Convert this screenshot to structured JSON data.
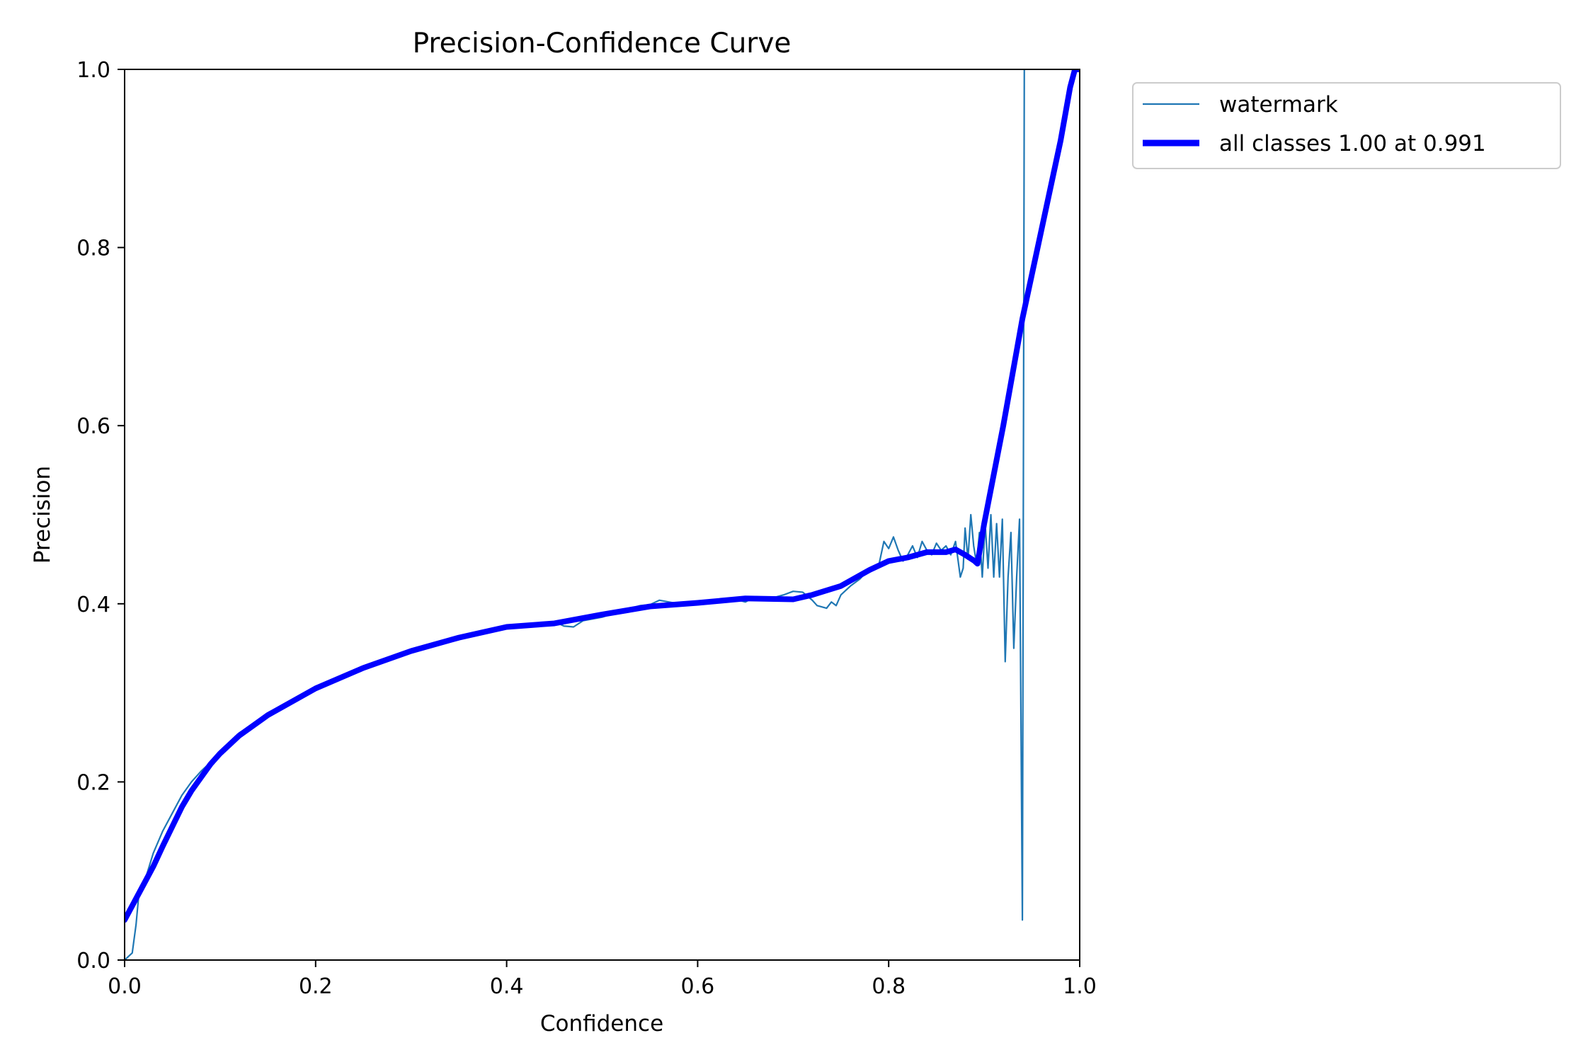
{
  "chart_data": {
    "type": "line",
    "title": "Precision-Confidence Curve",
    "xlabel": "Confidence",
    "ylabel": "Precision",
    "xlim": [
      0.0,
      1.0
    ],
    "ylim": [
      0.0,
      1.0
    ],
    "xticks": [
      0.0,
      0.2,
      0.4,
      0.6,
      0.8,
      1.0
    ],
    "yticks": [
      0.0,
      0.2,
      0.4,
      0.6,
      0.8,
      1.0
    ],
    "xtick_labels": [
      "0.0",
      "0.2",
      "0.4",
      "0.6",
      "0.8",
      "1.0"
    ],
    "ytick_labels": [
      "0.0",
      "0.2",
      "0.4",
      "0.6",
      "0.8",
      "1.0"
    ],
    "grid": false,
    "legend": {
      "placement": "outside-top-right",
      "entries": [
        {
          "label": "watermark",
          "color": "#1f77b4",
          "style": "thin"
        },
        {
          "label": "all classes 1.00 at 0.991",
          "color": "#0000ff",
          "style": "thick"
        }
      ]
    },
    "series": [
      {
        "name": "watermark",
        "color": "#1f77b4",
        "points": [
          [
            0.0,
            0.0
          ],
          [
            0.005,
            0.005
          ],
          [
            0.008,
            0.008
          ],
          [
            0.012,
            0.04
          ],
          [
            0.015,
            0.075
          ],
          [
            0.02,
            0.085
          ],
          [
            0.03,
            0.12
          ],
          [
            0.04,
            0.145
          ],
          [
            0.05,
            0.165
          ],
          [
            0.06,
            0.185
          ],
          [
            0.07,
            0.2
          ],
          [
            0.08,
            0.212
          ],
          [
            0.09,
            0.222
          ],
          [
            0.1,
            0.235
          ],
          [
            0.12,
            0.255
          ],
          [
            0.15,
            0.275
          ],
          [
            0.2,
            0.305
          ],
          [
            0.25,
            0.327
          ],
          [
            0.3,
            0.347
          ],
          [
            0.35,
            0.362
          ],
          [
            0.4,
            0.374
          ],
          [
            0.43,
            0.378
          ],
          [
            0.45,
            0.38
          ],
          [
            0.46,
            0.375
          ],
          [
            0.47,
            0.374
          ],
          [
            0.48,
            0.381
          ],
          [
            0.5,
            0.385
          ],
          [
            0.52,
            0.392
          ],
          [
            0.54,
            0.398
          ],
          [
            0.55,
            0.399
          ],
          [
            0.56,
            0.404
          ],
          [
            0.58,
            0.4
          ],
          [
            0.6,
            0.4
          ],
          [
            0.62,
            0.404
          ],
          [
            0.64,
            0.405
          ],
          [
            0.65,
            0.402
          ],
          [
            0.66,
            0.408
          ],
          [
            0.68,
            0.407
          ],
          [
            0.69,
            0.41
          ],
          [
            0.7,
            0.414
          ],
          [
            0.71,
            0.413
          ],
          [
            0.72,
            0.404
          ],
          [
            0.725,
            0.398
          ],
          [
            0.735,
            0.395
          ],
          [
            0.74,
            0.402
          ],
          [
            0.745,
            0.398
          ],
          [
            0.75,
            0.41
          ],
          [
            0.76,
            0.42
          ],
          [
            0.77,
            0.428
          ],
          [
            0.78,
            0.44
          ],
          [
            0.79,
            0.445
          ],
          [
            0.795,
            0.47
          ],
          [
            0.8,
            0.462
          ],
          [
            0.805,
            0.475
          ],
          [
            0.81,
            0.46
          ],
          [
            0.815,
            0.448
          ],
          [
            0.82,
            0.455
          ],
          [
            0.825,
            0.465
          ],
          [
            0.83,
            0.452
          ],
          [
            0.835,
            0.47
          ],
          [
            0.84,
            0.46
          ],
          [
            0.845,
            0.455
          ],
          [
            0.85,
            0.468
          ],
          [
            0.855,
            0.46
          ],
          [
            0.86,
            0.465
          ],
          [
            0.865,
            0.455
          ],
          [
            0.87,
            0.47
          ],
          [
            0.875,
            0.43
          ],
          [
            0.878,
            0.44
          ],
          [
            0.88,
            0.485
          ],
          [
            0.883,
            0.45
          ],
          [
            0.886,
            0.5
          ],
          [
            0.889,
            0.465
          ],
          [
            0.892,
            0.445
          ],
          [
            0.895,
            0.48
          ],
          [
            0.898,
            0.43
          ],
          [
            0.901,
            0.49
          ],
          [
            0.904,
            0.44
          ],
          [
            0.907,
            0.5
          ],
          [
            0.91,
            0.43
          ],
          [
            0.913,
            0.49
          ],
          [
            0.916,
            0.43
          ],
          [
            0.919,
            0.495
          ],
          [
            0.922,
            0.335
          ],
          [
            0.925,
            0.43
          ],
          [
            0.928,
            0.48
          ],
          [
            0.931,
            0.35
          ],
          [
            0.934,
            0.43
          ],
          [
            0.937,
            0.495
          ],
          [
            0.94,
            0.045
          ],
          [
            0.942,
            1.0
          ]
        ]
      },
      {
        "name": "all classes 1.00 at 0.991",
        "color": "#0000ff",
        "points": [
          [
            0.0,
            0.045
          ],
          [
            0.01,
            0.065
          ],
          [
            0.02,
            0.085
          ],
          [
            0.03,
            0.105
          ],
          [
            0.04,
            0.128
          ],
          [
            0.05,
            0.15
          ],
          [
            0.06,
            0.172
          ],
          [
            0.07,
            0.19
          ],
          [
            0.08,
            0.205
          ],
          [
            0.09,
            0.22
          ],
          [
            0.1,
            0.232
          ],
          [
            0.12,
            0.252
          ],
          [
            0.15,
            0.275
          ],
          [
            0.2,
            0.305
          ],
          [
            0.25,
            0.328
          ],
          [
            0.3,
            0.347
          ],
          [
            0.35,
            0.362
          ],
          [
            0.4,
            0.374
          ],
          [
            0.45,
            0.378
          ],
          [
            0.5,
            0.388
          ],
          [
            0.55,
            0.397
          ],
          [
            0.6,
            0.401
          ],
          [
            0.65,
            0.406
          ],
          [
            0.7,
            0.405
          ],
          [
            0.72,
            0.41
          ],
          [
            0.75,
            0.42
          ],
          [
            0.78,
            0.438
          ],
          [
            0.8,
            0.448
          ],
          [
            0.82,
            0.452
          ],
          [
            0.84,
            0.458
          ],
          [
            0.86,
            0.458
          ],
          [
            0.87,
            0.461
          ],
          [
            0.88,
            0.455
          ],
          [
            0.89,
            0.448
          ],
          [
            0.893,
            0.445
          ],
          [
            0.9,
            0.49
          ],
          [
            0.92,
            0.6
          ],
          [
            0.94,
            0.72
          ],
          [
            0.96,
            0.82
          ],
          [
            0.98,
            0.92
          ],
          [
            0.99,
            0.98
          ],
          [
            0.995,
            1.0
          ],
          [
            1.0,
            1.0
          ]
        ]
      }
    ]
  }
}
